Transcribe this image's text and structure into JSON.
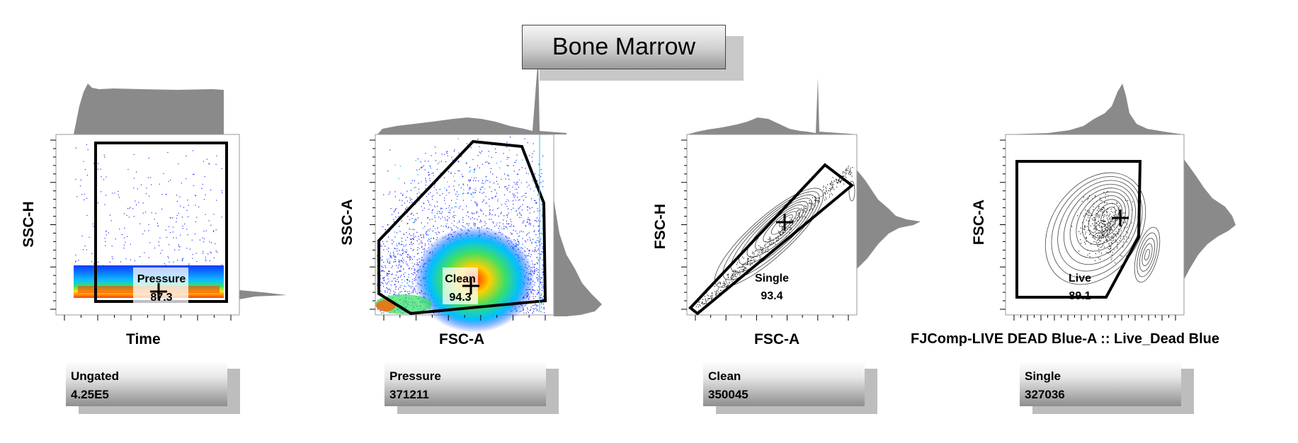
{
  "title": "Bone Marrow",
  "chart_data": [
    {
      "type": "scatter",
      "xlabel": "Time",
      "ylabel": "SSC-H",
      "gate": {
        "name": "Pressure",
        "value": "87.3"
      },
      "parent": {
        "name": "Ungated",
        "count": "4.25E5"
      }
    },
    {
      "type": "scatter",
      "xlabel": "FSC-A",
      "ylabel": "SSC-A",
      "gate": {
        "name": "Clean",
        "value": "94.3"
      },
      "parent": {
        "name": "Pressure",
        "count": "371211"
      }
    },
    {
      "type": "scatter",
      "xlabel": "FSC-A",
      "ylabel": "FSC-H",
      "gate": {
        "name": "Single",
        "value": "93.4"
      },
      "parent": {
        "name": "Clean",
        "count": "350045"
      }
    },
    {
      "type": "scatter",
      "xlabel": "FJComp-LIVE DEAD Blue-A :: Live_Dead Blue",
      "ylabel": "FSC-A",
      "gate": {
        "name": "Live",
        "value": "89.1"
      },
      "parent": {
        "name": "Single",
        "count": "327036"
      }
    }
  ],
  "colors": {
    "histogram": "#8a8a8a",
    "density_low": "#0000ee",
    "density_high": "#ff2000",
    "gate": "#000000"
  }
}
